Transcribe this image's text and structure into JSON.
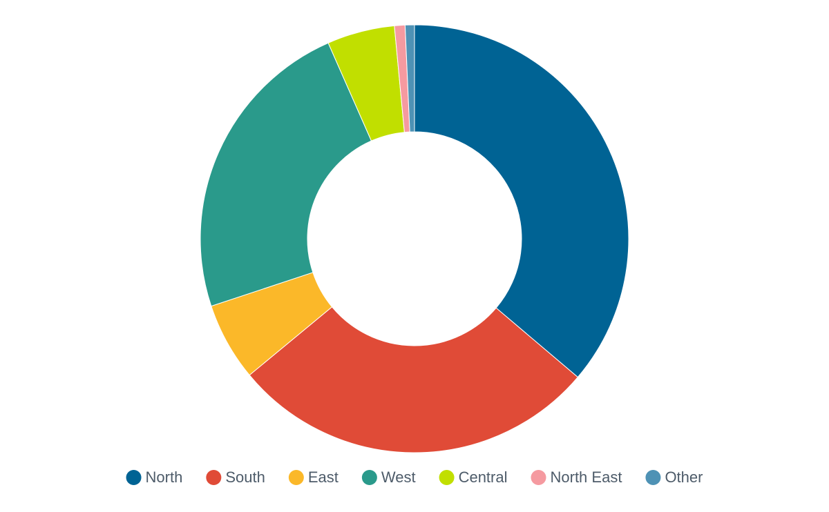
{
  "chart_data": {
    "type": "donut",
    "categories": [
      "North",
      "South",
      "East",
      "West",
      "Central",
      "North East",
      "Other"
    ],
    "values": [
      36.2,
      27.8,
      5.9,
      23.5,
      5.1,
      0.8,
      0.7
    ],
    "colors": [
      "#006394",
      "#e04b37",
      "#fbb829",
      "#2a9a8b",
      "#c1df00",
      "#f59aa0",
      "#4e92b5"
    ],
    "legend": "bottom"
  }
}
